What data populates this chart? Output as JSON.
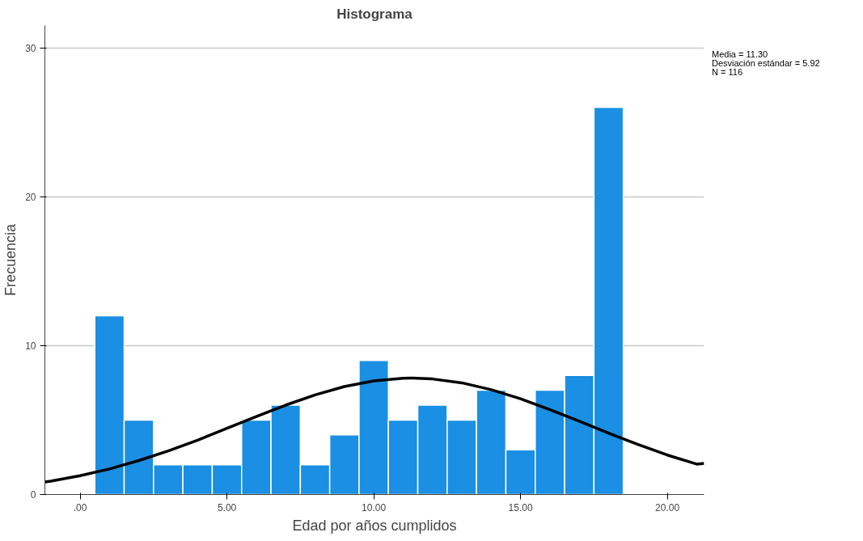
{
  "chart_data": {
    "type": "histogram",
    "title": "Histograma",
    "xlabel": "Edad por años cumplidos",
    "ylabel": "Frecuencia",
    "bins": [
      0.5,
      1.5,
      2.5,
      3.5,
      4.5,
      5.5,
      6.5,
      7.5,
      8.5,
      9.5,
      10.5,
      11.5,
      12.5,
      13.5,
      14.5,
      15.5,
      16.5,
      17.5,
      18.5
    ],
    "values": [
      12,
      5,
      2,
      2,
      2,
      5,
      6,
      2,
      4,
      9,
      5,
      6,
      5,
      7,
      3,
      7,
      8,
      26
    ],
    "color": "#1a8fe3",
    "series": [
      {
        "type": "line",
        "color": "#000000",
        "x": [
          -1.2,
          -1,
          0,
          1,
          2,
          3,
          4,
          5,
          6,
          7,
          8,
          9,
          10,
          11,
          11.3,
          12,
          13,
          14,
          15,
          16,
          17,
          18,
          19,
          20,
          21,
          21.25
        ],
        "values": [
          0.84,
          0.9,
          1.26,
          1.72,
          2.28,
          2.93,
          3.65,
          4.44,
          5.24,
          6.0,
          6.69,
          7.25,
          7.63,
          7.81,
          7.82,
          7.76,
          7.5,
          7.04,
          6.43,
          5.7,
          4.92,
          4.12,
          3.36,
          2.65,
          2.04,
          2.09
        ]
      }
    ],
    "xlim": [
      -1.2,
      21.25
    ],
    "ylim": [
      0,
      31.5
    ],
    "xticks": [
      {
        "value": 0,
        "label": ".00"
      },
      {
        "value": 5,
        "label": "5.00"
      },
      {
        "value": 10,
        "label": "10.00"
      },
      {
        "value": 15,
        "label": "15.00"
      },
      {
        "value": 20,
        "label": "20.00"
      }
    ],
    "yticks": [
      0,
      10,
      20,
      30
    ],
    "grid": "y",
    "line_style": "solid",
    "annotations": [
      "Media = 11.30",
      "Desviación estándar = 5.92",
      "N = 116"
    ]
  }
}
